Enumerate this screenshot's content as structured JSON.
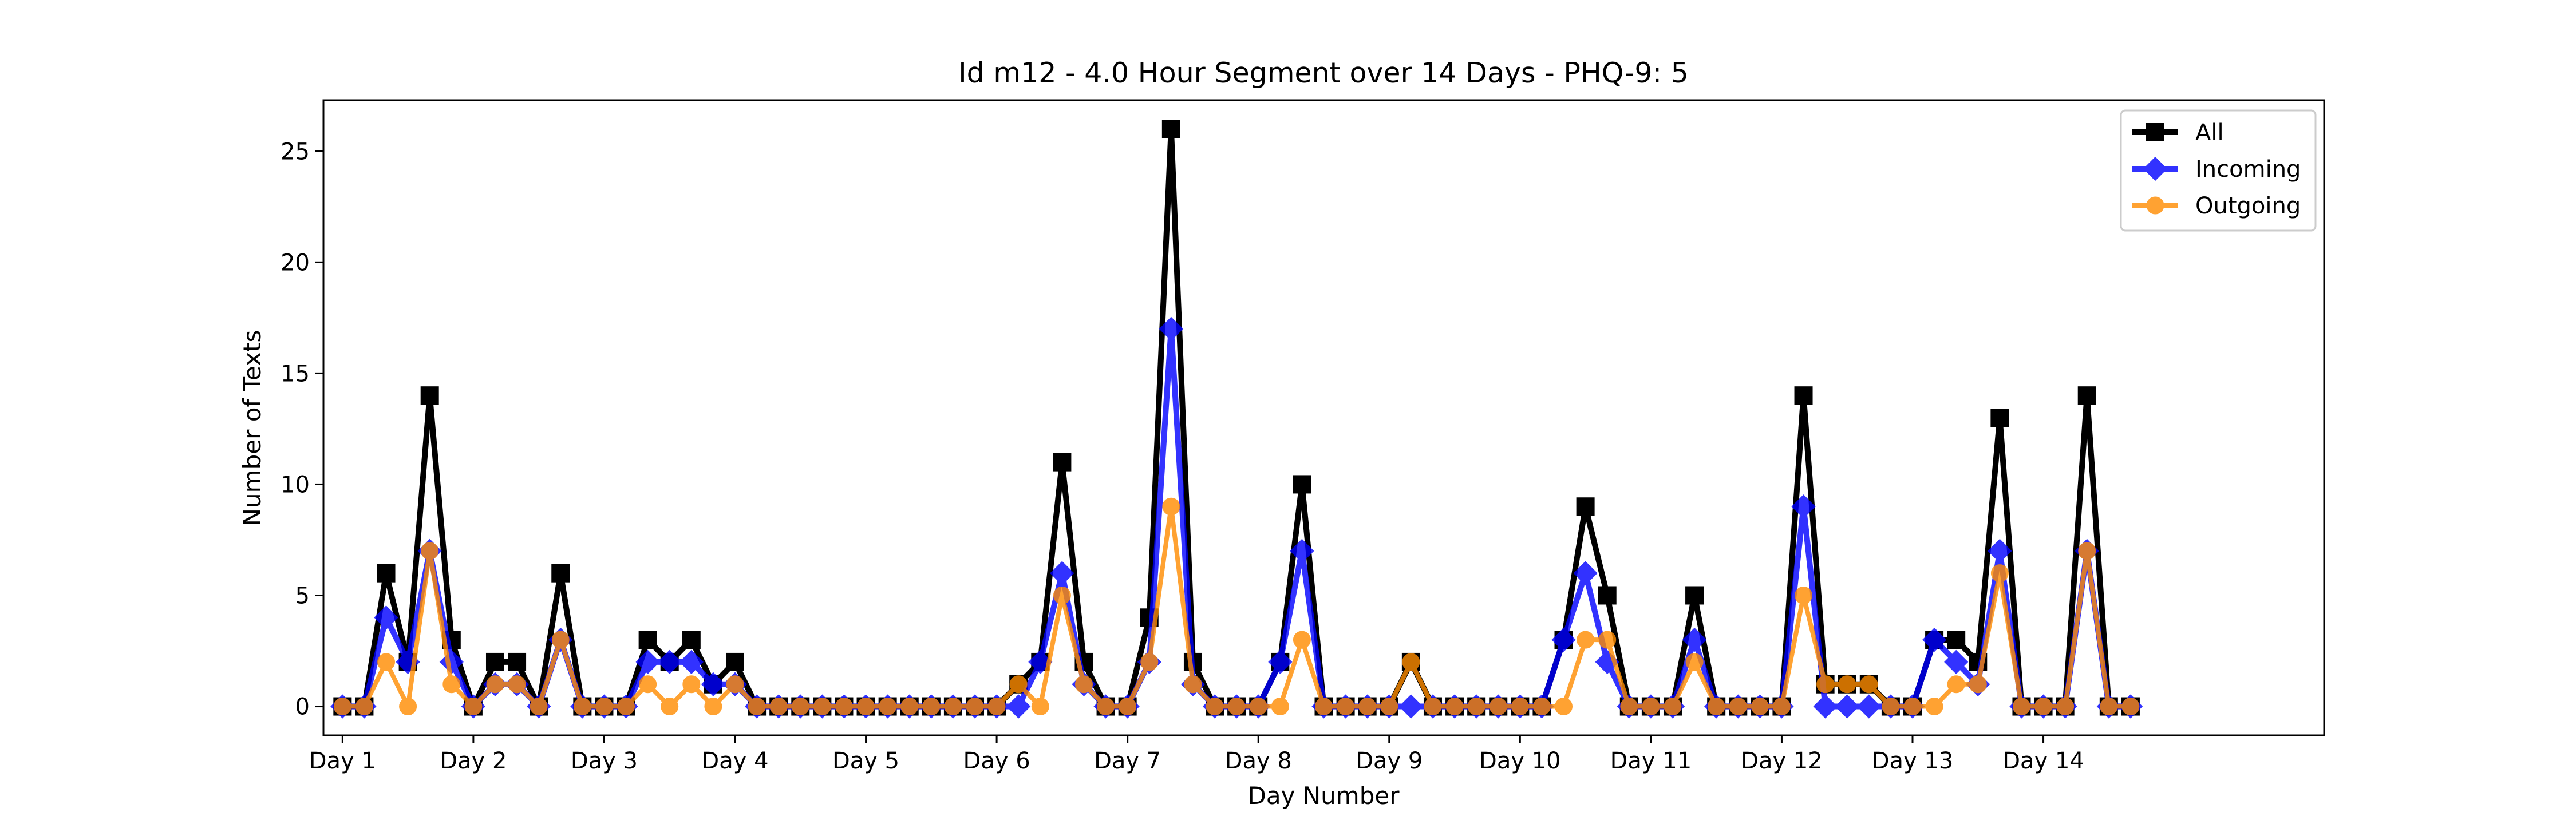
{
  "chart_data": {
    "type": "line",
    "title": "Id m12 - 4.0 Hour Segment over 14 Days - PHQ-9: 5",
    "xlabel": "Day Number",
    "ylabel": "Number of Texts",
    "x_ticks": [
      "Day 1",
      "Day 2",
      "Day 3",
      "Day 4",
      "Day 5",
      "Day 6",
      "Day 7",
      "Day 8",
      "Day 9",
      "Day 10",
      "Day 11",
      "Day 12",
      "Day 13",
      "Day 14"
    ],
    "y_ticks": [
      0,
      5,
      10,
      15,
      20,
      25
    ],
    "xlim": [
      -0.875,
      90.875
    ],
    "ylim": [
      -1.3,
      27.3
    ],
    "grid": false,
    "legend_position": "top-right",
    "series": [
      {
        "name": "All",
        "color": "#000000",
        "marker": "square",
        "values": [
          0,
          0,
          6,
          2,
          14,
          3,
          0,
          2,
          2,
          0,
          6,
          0,
          0,
          0,
          3,
          2,
          3,
          1,
          2,
          0,
          0,
          0,
          0,
          0,
          0,
          0,
          0,
          0,
          0,
          0,
          0,
          1,
          2,
          11,
          2,
          0,
          0,
          4,
          26,
          2,
          0,
          0,
          0,
          2,
          10,
          0,
          0,
          0,
          0,
          2,
          0,
          0,
          0,
          0,
          0,
          0,
          3,
          9,
          5,
          0,
          0,
          0,
          5,
          0,
          0,
          0,
          0,
          14,
          1,
          1,
          1,
          0,
          0,
          3,
          3,
          2,
          13,
          0,
          0,
          0,
          14,
          0,
          0
        ]
      },
      {
        "name": "Incoming",
        "color": "#0000ff",
        "marker": "diamond",
        "values": [
          0,
          0,
          4,
          2,
          7,
          2,
          0,
          1,
          1,
          0,
          3,
          0,
          0,
          0,
          2,
          2,
          2,
          1,
          1,
          0,
          0,
          0,
          0,
          0,
          0,
          0,
          0,
          0,
          0,
          0,
          0,
          0,
          2,
          6,
          1,
          0,
          0,
          2,
          17,
          1,
          0,
          0,
          0,
          2,
          7,
          0,
          0,
          0,
          0,
          0,
          0,
          0,
          0,
          0,
          0,
          0,
          3,
          6,
          2,
          0,
          0,
          0,
          3,
          0,
          0,
          0,
          0,
          9,
          0,
          0,
          0,
          0,
          0,
          3,
          2,
          1,
          7,
          0,
          0,
          0,
          7,
          0,
          0
        ]
      },
      {
        "name": "Outgoing",
        "color": "#ff8c00",
        "marker": "circle",
        "values": [
          0,
          0,
          2,
          0,
          7,
          1,
          0,
          1,
          1,
          0,
          3,
          0,
          0,
          0,
          1,
          0,
          1,
          0,
          1,
          0,
          0,
          0,
          0,
          0,
          0,
          0,
          0,
          0,
          0,
          0,
          0,
          1,
          0,
          5,
          1,
          0,
          0,
          2,
          9,
          1,
          0,
          0,
          0,
          0,
          3,
          0,
          0,
          0,
          0,
          2,
          0,
          0,
          0,
          0,
          0,
          0,
          0,
          3,
          3,
          0,
          0,
          0,
          2,
          0,
          0,
          0,
          0,
          5,
          1,
          1,
          1,
          0,
          0,
          0,
          1,
          1,
          6,
          0,
          0,
          0,
          7,
          0,
          0
        ]
      }
    ]
  }
}
